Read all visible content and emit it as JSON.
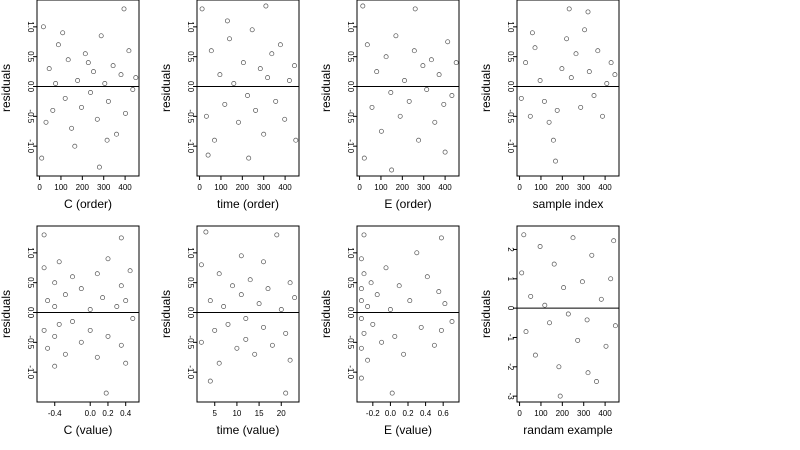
{
  "chart_data": [
    {
      "type": "scatter",
      "ylabel": "residuals",
      "xlabel": "C (order)",
      "xlim": [
        -12,
        465
      ],
      "ylim": [
        -1.5,
        1.45
      ],
      "xticks": [
        0,
        100,
        200,
        300,
        400
      ],
      "xtick_labels": [
        "0",
        "100",
        "200",
        "300",
        "400"
      ],
      "yticks": [
        -1,
        -0.5,
        0,
        0.5,
        1
      ],
      "ytick_labels": [
        "-1.0",
        "-0.5",
        "0.0",
        "0.5",
        "1.0"
      ],
      "hline": 0,
      "points": [
        [
          18,
          1.0
        ],
        [
          45,
          0.3
        ],
        [
          62,
          -0.4
        ],
        [
          88,
          0.7
        ],
        [
          120,
          -0.2
        ],
        [
          134,
          0.45
        ],
        [
          150,
          -0.7
        ],
        [
          178,
          0.1
        ],
        [
          196,
          -0.35
        ],
        [
          214,
          0.55
        ],
        [
          238,
          -0.1
        ],
        [
          252,
          0.25
        ],
        [
          270,
          -0.55
        ],
        [
          288,
          0.85
        ],
        [
          305,
          0.05
        ],
        [
          322,
          -0.25
        ],
        [
          344,
          0.35
        ],
        [
          360,
          -0.8
        ],
        [
          381,
          0.2
        ],
        [
          402,
          -0.45
        ],
        [
          418,
          0.6
        ],
        [
          436,
          -0.05
        ],
        [
          450,
          0.15
        ],
        [
          30,
          -0.6
        ],
        [
          75,
          0.05
        ],
        [
          108,
          0.9
        ],
        [
          165,
          -1.0
        ],
        [
          228,
          0.4
        ],
        [
          316,
          -0.9
        ],
        [
          395,
          1.3
        ],
        [
          10,
          -1.2
        ],
        [
          280,
          -1.35
        ]
      ]
    },
    {
      "type": "scatter",
      "ylabel": "residuals",
      "xlabel": "time (order)",
      "xlim": [
        -12,
        465
      ],
      "ylim": [
        -1.5,
        1.45
      ],
      "xticks": [
        0,
        100,
        200,
        300,
        400
      ],
      "xtick_labels": [
        "0",
        "100",
        "200",
        "300",
        "400"
      ],
      "yticks": [
        -1,
        -0.5,
        0,
        0.5,
        1
      ],
      "ytick_labels": [
        "-1.0",
        "-0.5",
        "0.0",
        "0.5",
        "1.0"
      ],
      "hline": 0,
      "points": [
        [
          12,
          1.3
        ],
        [
          32,
          -0.5
        ],
        [
          55,
          0.6
        ],
        [
          70,
          -0.9
        ],
        [
          95,
          0.2
        ],
        [
          118,
          -0.3
        ],
        [
          140,
          0.8
        ],
        [
          160,
          0.05
        ],
        [
          182,
          -0.6
        ],
        [
          205,
          0.4
        ],
        [
          224,
          -0.15
        ],
        [
          246,
          0.95
        ],
        [
          262,
          -0.4
        ],
        [
          284,
          0.3
        ],
        [
          300,
          -0.8
        ],
        [
          318,
          0.15
        ],
        [
          338,
          0.55
        ],
        [
          356,
          -0.25
        ],
        [
          378,
          0.7
        ],
        [
          398,
          -0.55
        ],
        [
          420,
          0.1
        ],
        [
          444,
          0.35
        ],
        [
          40,
          -1.15
        ],
        [
          130,
          1.1
        ],
        [
          230,
          -1.2
        ],
        [
          310,
          1.35
        ],
        [
          450,
          -0.9
        ]
      ]
    },
    {
      "type": "scatter",
      "ylabel": "residuals",
      "xlabel": "E (order)",
      "xlim": [
        -12,
        465
      ],
      "ylim": [
        -1.5,
        1.45
      ],
      "xticks": [
        0,
        100,
        200,
        300,
        400
      ],
      "xtick_labels": [
        "0",
        "100",
        "200",
        "300",
        "400"
      ],
      "yticks": [
        -1,
        -0.5,
        0,
        0.5,
        1
      ],
      "ytick_labels": [
        "-1.0",
        "-0.5",
        "0.0",
        "0.5",
        "1.0"
      ],
      "hline": 0,
      "points": [
        [
          15,
          1.35
        ],
        [
          36,
          0.7
        ],
        [
          58,
          -0.35
        ],
        [
          80,
          0.25
        ],
        [
          102,
          -0.75
        ],
        [
          124,
          0.5
        ],
        [
          146,
          -0.1
        ],
        [
          170,
          0.85
        ],
        [
          190,
          -0.5
        ],
        [
          210,
          0.1
        ],
        [
          232,
          -0.25
        ],
        [
          256,
          0.6
        ],
        [
          276,
          -0.9
        ],
        [
          296,
          0.35
        ],
        [
          314,
          -0.05
        ],
        [
          336,
          0.45
        ],
        [
          352,
          -0.6
        ],
        [
          372,
          0.2
        ],
        [
          394,
          -0.3
        ],
        [
          412,
          0.75
        ],
        [
          432,
          -0.15
        ],
        [
          452,
          0.4
        ],
        [
          22,
          -1.2
        ],
        [
          150,
          -1.4
        ],
        [
          260,
          1.3
        ],
        [
          400,
          -1.1
        ]
      ]
    },
    {
      "type": "scatter",
      "ylabel": "residuals",
      "xlabel": "sample index",
      "xlim": [
        -12,
        465
      ],
      "ylim": [
        -1.5,
        1.45
      ],
      "xticks": [
        0,
        100,
        200,
        300,
        400
      ],
      "xtick_labels": [
        "0",
        "100",
        "200",
        "300",
        "400"
      ],
      "yticks": [
        -1,
        -0.5,
        0,
        0.5,
        1
      ],
      "ytick_labels": [
        "-1.0",
        "-0.5",
        "0.0",
        "0.5",
        "1.0"
      ],
      "hline": 0,
      "points": [
        [
          8,
          -0.2
        ],
        [
          28,
          0.4
        ],
        [
          50,
          -0.5
        ],
        [
          72,
          0.65
        ],
        [
          96,
          0.1
        ],
        [
          116,
          -0.25
        ],
        [
          138,
          -0.6
        ],
        [
          158,
          -0.9
        ],
        [
          176,
          -0.4
        ],
        [
          198,
          0.3
        ],
        [
          220,
          0.8
        ],
        [
          242,
          0.15
        ],
        [
          264,
          0.55
        ],
        [
          286,
          -0.35
        ],
        [
          304,
          0.95
        ],
        [
          326,
          0.25
        ],
        [
          348,
          -0.15
        ],
        [
          366,
          0.6
        ],
        [
          388,
          -0.5
        ],
        [
          408,
          0.05
        ],
        [
          428,
          0.4
        ],
        [
          446,
          0.2
        ],
        [
          168,
          -1.25
        ],
        [
          232,
          1.3
        ],
        [
          320,
          1.25
        ],
        [
          60,
          0.9
        ]
      ]
    },
    {
      "type": "scatter",
      "ylabel": "residuals",
      "xlabel": "C (value)",
      "xlim": [
        -0.6,
        0.55
      ],
      "ylim": [
        -1.5,
        1.45
      ],
      "xticks": [
        -0.4,
        0.0,
        0.2,
        0.4
      ],
      "xtick_labels": [
        "-0.4",
        "0.0",
        "0.2",
        "0.4"
      ],
      "yticks": [
        -1,
        -0.5,
        0,
        0.5,
        1
      ],
      "ytick_labels": [
        "-1.0",
        "-0.5",
        "0.0",
        "0.5",
        "1.0"
      ],
      "hline": 0,
      "points": [
        [
          -0.52,
          0.75
        ],
        [
          -0.52,
          -0.3
        ],
        [
          -0.52,
          1.3
        ],
        [
          -0.48,
          0.2
        ],
        [
          -0.48,
          -0.6
        ],
        [
          -0.4,
          0.5
        ],
        [
          -0.4,
          -0.4
        ],
        [
          -0.4,
          0.1
        ],
        [
          -0.4,
          -0.9
        ],
        [
          -0.35,
          0.85
        ],
        [
          -0.35,
          -0.2
        ],
        [
          -0.28,
          0.3
        ],
        [
          -0.28,
          -0.7
        ],
        [
          -0.2,
          0.6
        ],
        [
          -0.2,
          -0.15
        ],
        [
          -0.1,
          0.4
        ],
        [
          -0.1,
          -0.5
        ],
        [
          0.0,
          0.05
        ],
        [
          0.0,
          -0.3
        ],
        [
          0.08,
          0.65
        ],
        [
          0.08,
          -0.75
        ],
        [
          0.14,
          0.25
        ],
        [
          0.2,
          -0.4
        ],
        [
          0.2,
          0.9
        ],
        [
          0.3,
          0.1
        ],
        [
          0.35,
          0.45
        ],
        [
          0.35,
          -0.55
        ],
        [
          0.35,
          1.25
        ],
        [
          0.4,
          -0.85
        ],
        [
          0.4,
          0.2
        ],
        [
          0.45,
          0.7
        ],
        [
          0.48,
          -0.1
        ],
        [
          0.18,
          -1.35
        ]
      ]
    },
    {
      "type": "scatter",
      "ylabel": "residuals",
      "xlabel": "time (value)",
      "xlim": [
        1,
        24
      ],
      "ylim": [
        -1.5,
        1.45
      ],
      "xticks": [
        5,
        10,
        15,
        20
      ],
      "xtick_labels": [
        "5",
        "10",
        "15",
        "20"
      ],
      "yticks": [
        -1,
        -0.5,
        0,
        0.5,
        1
      ],
      "ytick_labels": [
        "-1.0",
        "-0.5",
        "0.0",
        "0.5",
        "1.0"
      ],
      "hline": 0,
      "points": [
        [
          2,
          0.8
        ],
        [
          2,
          -0.5
        ],
        [
          3,
          1.35
        ],
        [
          4,
          0.2
        ],
        [
          5,
          -0.3
        ],
        [
          6,
          0.65
        ],
        [
          6,
          -0.85
        ],
        [
          7,
          0.1
        ],
        [
          8,
          -0.2
        ],
        [
          9,
          0.45
        ],
        [
          10,
          -0.6
        ],
        [
          11,
          0.3
        ],
        [
          11,
          0.95
        ],
        [
          12,
          -0.1
        ],
        [
          12,
          -0.45
        ],
        [
          13,
          0.55
        ],
        [
          14,
          -0.7
        ],
        [
          15,
          0.15
        ],
        [
          16,
          0.85
        ],
        [
          16,
          -0.25
        ],
        [
          17,
          0.4
        ],
        [
          18,
          -0.55
        ],
        [
          19,
          1.3
        ],
        [
          20,
          0.05
        ],
        [
          21,
          -0.35
        ],
        [
          22,
          0.5
        ],
        [
          22,
          -0.8
        ],
        [
          23,
          0.25
        ],
        [
          21,
          -1.35
        ],
        [
          4,
          -1.15
        ]
      ]
    },
    {
      "type": "scatter",
      "ylabel": "residuals",
      "xlabel": "E (value)",
      "xlim": [
        -0.38,
        0.78
      ],
      "ylim": [
        -1.5,
        1.45
      ],
      "xticks": [
        -0.2,
        0.0,
        0.2,
        0.4,
        0.6
      ],
      "xtick_labels": [
        "-0.2",
        "0.0",
        "0.2",
        "0.4",
        "0.6"
      ],
      "yticks": [
        -1,
        -0.5,
        0,
        0.5,
        1
      ],
      "ytick_labels": [
        "-1.0",
        "-0.5",
        "0.0",
        "0.5",
        "1.0"
      ],
      "hline": 0,
      "points": [
        [
          -0.33,
          0.9
        ],
        [
          -0.33,
          0.4
        ],
        [
          -0.33,
          -0.1
        ],
        [
          -0.33,
          -0.6
        ],
        [
          -0.33,
          -1.1
        ],
        [
          -0.33,
          0.2
        ],
        [
          -0.3,
          0.65
        ],
        [
          -0.3,
          -0.35
        ],
        [
          -0.3,
          1.3
        ],
        [
          -0.26,
          0.1
        ],
        [
          -0.26,
          -0.8
        ],
        [
          -0.22,
          0.5
        ],
        [
          -0.2,
          -0.2
        ],
        [
          -0.15,
          0.3
        ],
        [
          -0.1,
          -0.5
        ],
        [
          -0.05,
          0.75
        ],
        [
          0.0,
          0.05
        ],
        [
          0.05,
          -0.4
        ],
        [
          0.1,
          0.45
        ],
        [
          0.15,
          -0.7
        ],
        [
          0.22,
          0.2
        ],
        [
          0.3,
          1.0
        ],
        [
          0.35,
          -0.25
        ],
        [
          0.42,
          0.6
        ],
        [
          0.5,
          -0.55
        ],
        [
          0.55,
          0.35
        ],
        [
          0.58,
          1.25
        ],
        [
          0.58,
          -0.3
        ],
        [
          0.62,
          0.15
        ],
        [
          0.7,
          -0.15
        ],
        [
          0.02,
          -1.35
        ]
      ]
    },
    {
      "type": "scatter",
      "ylabel": "residuals",
      "xlabel": "randam example",
      "xlim": [
        -12,
        465
      ],
      "ylim": [
        -3.2,
        2.8
      ],
      "xticks": [
        0,
        100,
        200,
        300,
        400
      ],
      "xtick_labels": [
        "0",
        "100",
        "200",
        "300",
        "400"
      ],
      "yticks": [
        -3,
        -2,
        -1,
        0,
        1,
        2
      ],
      "ytick_labels": [
        "-3",
        "-2",
        "-1",
        "0",
        "1",
        "2"
      ],
      "hline": 0,
      "points": [
        [
          10,
          1.2
        ],
        [
          30,
          -0.8
        ],
        [
          52,
          0.4
        ],
        [
          74,
          -1.6
        ],
        [
          96,
          2.1
        ],
        [
          118,
          0.1
        ],
        [
          140,
          -0.5
        ],
        [
          162,
          1.5
        ],
        [
          184,
          -2.0
        ],
        [
          206,
          0.7
        ],
        [
          228,
          -0.2
        ],
        [
          250,
          2.4
        ],
        [
          272,
          -1.1
        ],
        [
          294,
          0.9
        ],
        [
          316,
          -0.4
        ],
        [
          338,
          1.8
        ],
        [
          360,
          -2.5
        ],
        [
          382,
          0.3
        ],
        [
          404,
          -1.3
        ],
        [
          426,
          1.0
        ],
        [
          448,
          -0.6
        ],
        [
          20,
          2.5
        ],
        [
          190,
          -3.0
        ],
        [
          320,
          -2.2
        ],
        [
          440,
          2.3
        ]
      ]
    }
  ]
}
